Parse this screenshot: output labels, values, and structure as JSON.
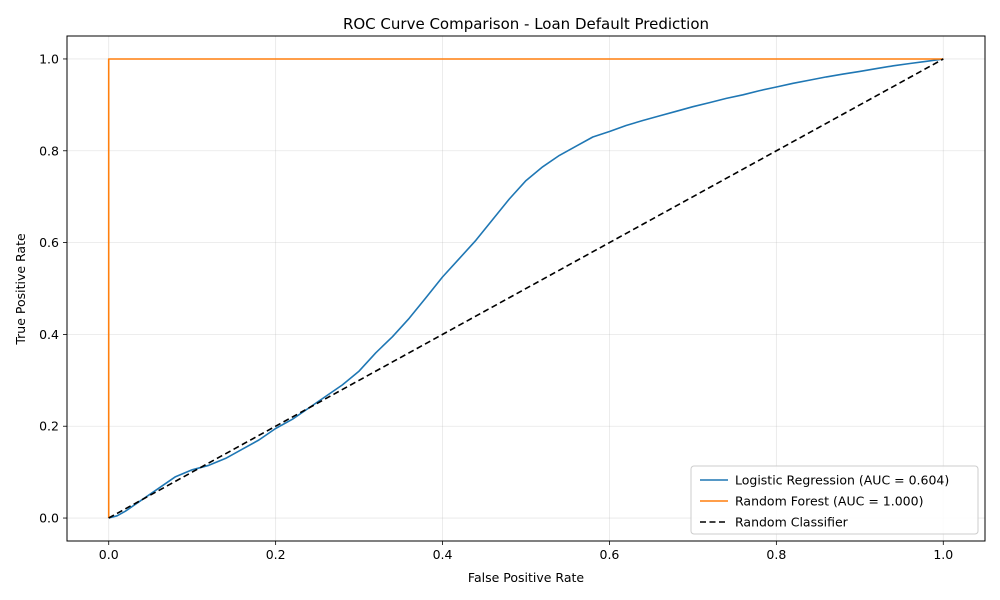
{
  "chart_data": {
    "type": "line",
    "title": "ROC Curve Comparison - Loan Default Prediction",
    "xlabel": "False Positive Rate",
    "ylabel": "True Positive Rate",
    "xlim": [
      -0.05,
      1.05
    ],
    "ylim": [
      -0.05,
      1.05
    ],
    "x_ticks": [
      0.0,
      0.2,
      0.4,
      0.6,
      0.8,
      1.0
    ],
    "y_ticks": [
      0.0,
      0.2,
      0.4,
      0.6,
      0.8,
      1.0
    ],
    "x_tick_labels": [
      "0.0",
      "0.2",
      "0.4",
      "0.6",
      "0.8",
      "1.0"
    ],
    "y_tick_labels": [
      "0.0",
      "0.2",
      "0.4",
      "0.6",
      "0.8",
      "1.0"
    ],
    "grid": true,
    "legend_position": "bottom-right",
    "series": [
      {
        "name": "Logistic Regression (AUC = 0.604)",
        "color": "#1f77b4",
        "style": "solid",
        "x": [
          0.0,
          0.01,
          0.02,
          0.04,
          0.06,
          0.08,
          0.1,
          0.12,
          0.14,
          0.16,
          0.18,
          0.2,
          0.22,
          0.24,
          0.26,
          0.28,
          0.3,
          0.32,
          0.34,
          0.36,
          0.38,
          0.4,
          0.42,
          0.44,
          0.46,
          0.48,
          0.5,
          0.52,
          0.54,
          0.56,
          0.58,
          0.6,
          0.62,
          0.64,
          0.66,
          0.68,
          0.7,
          0.72,
          0.74,
          0.76,
          0.78,
          0.8,
          0.82,
          0.84,
          0.86,
          0.88,
          0.9,
          0.92,
          0.94,
          0.96,
          0.98,
          1.0
        ],
        "y": [
          0.0,
          0.005,
          0.015,
          0.04,
          0.065,
          0.09,
          0.105,
          0.115,
          0.13,
          0.15,
          0.17,
          0.195,
          0.215,
          0.24,
          0.265,
          0.29,
          0.32,
          0.36,
          0.395,
          0.435,
          0.48,
          0.525,
          0.565,
          0.605,
          0.65,
          0.695,
          0.735,
          0.765,
          0.79,
          0.81,
          0.83,
          0.842,
          0.855,
          0.866,
          0.876,
          0.886,
          0.896,
          0.905,
          0.914,
          0.922,
          0.931,
          0.939,
          0.947,
          0.954,
          0.961,
          0.967,
          0.973,
          0.979,
          0.985,
          0.99,
          0.995,
          1.0
        ]
      },
      {
        "name": "Random Forest (AUC = 1.000)",
        "color": "#ff7f0e",
        "style": "solid",
        "x": [
          0.0,
          0.0,
          1.0
        ],
        "y": [
          0.0,
          1.0,
          1.0
        ]
      },
      {
        "name": "Random Classifier",
        "color": "#000000",
        "style": "dashed",
        "x": [
          0.0,
          1.0
        ],
        "y": [
          0.0,
          1.0
        ]
      }
    ]
  }
}
